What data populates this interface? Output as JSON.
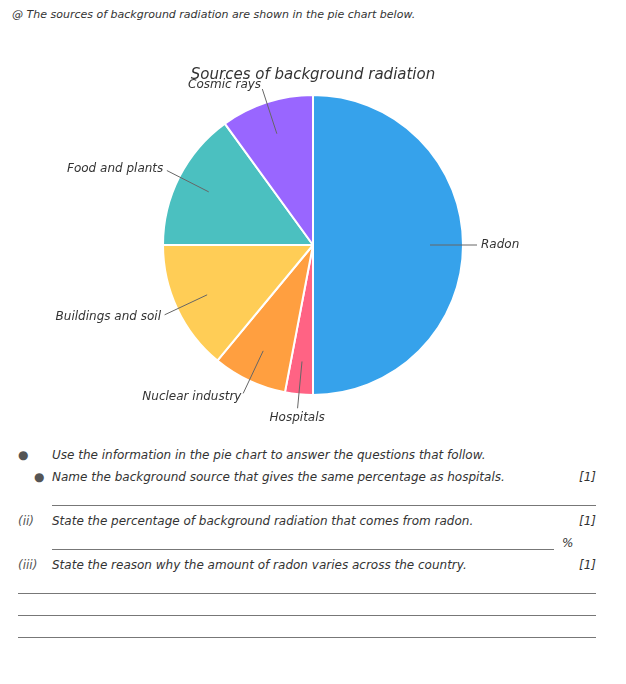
{
  "chart_data": {
    "type": "pie",
    "title": "Sources of background radiation",
    "subtitle": "@ The sources of background radiation are shown in the pie chart below.",
    "categories": [
      "Radon",
      "Hospitals",
      "Nuclear industry",
      "Buildings and soil",
      "Food and plants",
      "Cosmic rays"
    ],
    "values": [
      50,
      3,
      8,
      14,
      15,
      10
    ],
    "annotations": [
      [
        "●",
        "Use the information in the pie chart to answer the questions that follow."
      ],
      [
        "●",
        "Name the background source that gives the same percentage as hospitals.",
        "[1]"
      ],
      [
        "(ii)",
        "State the percentage of background radiation that comes from radon.",
        "[1]",
        "%"
      ],
      [
        "(iii)",
        "State the reason why the amount of radon varies across the country.",
        "[1]"
      ]
    ]
  }
}
